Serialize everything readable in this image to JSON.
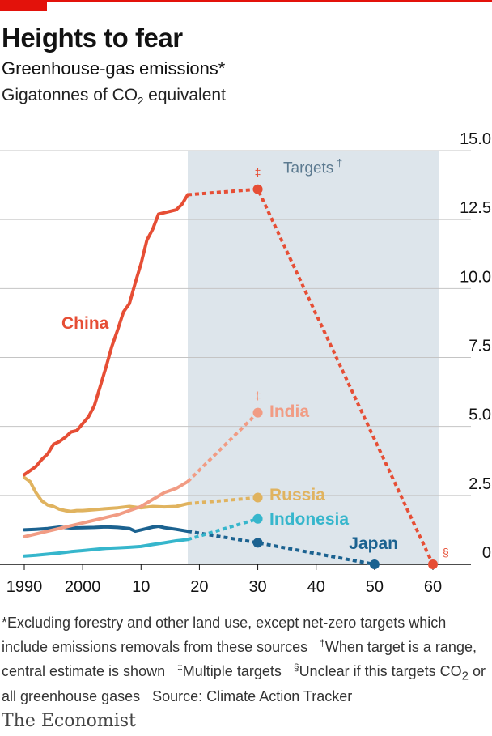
{
  "title": "Heights to fear",
  "subtitle": "Greenhouse-gas emissions*",
  "unit": {
    "pre": "Gigatonnes of CO",
    "sub": "2",
    "post": " equivalent"
  },
  "brand": "The Economist",
  "footnote": {
    "p1": "*Excluding forestry and other land use, except net-zero targets which include emissions removals from these sources",
    "s1": "†",
    "p2": "When target is a range, central estimate is shown",
    "s2": "‡",
    "p3": "Multiple targets",
    "s3": "§",
    "p4": "Unclear if this targets CO",
    "sub": "2",
    "p5": " or all greenhouse gases",
    "source": "Source: Climate Action Tracker"
  },
  "colors": {
    "China": "#e64e35",
    "India": "#f19c84",
    "Russia": "#e0b35f",
    "Indonesia": "#36b6cc",
    "Japan": "#1b6290",
    "targets_band": "#dde5eb",
    "targets_label": "#5c7a90",
    "grid": "#c4c4c4",
    "axis": "#121212"
  },
  "chart_data": {
    "type": "line",
    "xlim": [
      1990,
      2060
    ],
    "ylim": [
      0,
      15
    ],
    "y_axis_position": "right",
    "grid": true,
    "y_ticks": [
      0,
      2.5,
      5,
      7.5,
      10,
      12.5,
      15
    ],
    "y_tick_labels": [
      "0",
      "2.5",
      "5.0",
      "7.5",
      "10.0",
      "12.5",
      "15.0"
    ],
    "x_ticks": [
      1990,
      2000,
      2010,
      2020,
      2030,
      2040,
      2050,
      2060
    ],
    "x_tick_labels": [
      "1990",
      "2000",
      "10",
      "20",
      "30",
      "40",
      "50",
      "60"
    ],
    "targets_band": {
      "from": 2018,
      "to": 2060,
      "label": "Targets",
      "label_mark": "†"
    },
    "series": [
      {
        "name": "China",
        "x": [
          1990,
          1991,
          1992,
          1993,
          1994,
          1995,
          1996,
          1997,
          1998,
          1999,
          2000,
          2001,
          2002,
          2003,
          2004,
          2005,
          2006,
          2007,
          2008,
          2009,
          2010,
          2011,
          2012,
          2013,
          2014,
          2015,
          2016,
          2017,
          2018
        ],
        "y": [
          3.25,
          3.4,
          3.55,
          3.8,
          4.0,
          4.35,
          4.45,
          4.6,
          4.8,
          4.85,
          5.1,
          5.35,
          5.75,
          6.45,
          7.15,
          7.9,
          8.5,
          9.15,
          9.45,
          10.2,
          10.9,
          11.75,
          12.15,
          12.7,
          12.75,
          12.8,
          12.85,
          13.05,
          13.4
        ],
        "target_x": [
          2018,
          2030,
          2060
        ],
        "target_y": [
          13.4,
          13.6,
          0
        ],
        "target_marks": [
          "‡",
          "§"
        ]
      },
      {
        "name": "India",
        "x": [
          1990,
          1992,
          1994,
          1996,
          1998,
          2000,
          2002,
          2004,
          2006,
          2008,
          2010,
          2012,
          2014,
          2016,
          2018
        ],
        "y": [
          1.0,
          1.1,
          1.2,
          1.3,
          1.4,
          1.5,
          1.6,
          1.7,
          1.8,
          1.95,
          2.1,
          2.35,
          2.6,
          2.75,
          3.0
        ],
        "target_x": [
          2018,
          2030
        ],
        "target_y": [
          3.0,
          5.5
        ],
        "target_marks": [
          "‡"
        ]
      },
      {
        "name": "Russia",
        "x": [
          1990,
          1991,
          1992,
          1993,
          1994,
          1995,
          1996,
          1997,
          1998,
          1999,
          2000,
          2002,
          2004,
          2006,
          2008,
          2010,
          2012,
          2014,
          2016,
          2018
        ],
        "y": [
          3.15,
          3.0,
          2.6,
          2.3,
          2.15,
          2.1,
          2.0,
          1.95,
          1.92,
          1.95,
          1.95,
          1.98,
          2.02,
          2.05,
          2.1,
          2.05,
          2.1,
          2.08,
          2.1,
          2.2
        ],
        "target_x": [
          2018,
          2030
        ],
        "target_y": [
          2.2,
          2.42
        ],
        "target_marks": []
      },
      {
        "name": "Indonesia",
        "x": [
          1990,
          1992,
          1994,
          1996,
          1998,
          2000,
          2002,
          2004,
          2006,
          2008,
          2010,
          2012,
          2014,
          2016,
          2018
        ],
        "y": [
          0.3,
          0.33,
          0.37,
          0.41,
          0.46,
          0.5,
          0.54,
          0.58,
          0.6,
          0.62,
          0.65,
          0.72,
          0.78,
          0.85,
          0.9
        ],
        "target_x": [
          2018,
          2030
        ],
        "target_y": [
          0.9,
          1.65
        ],
        "target_marks": []
      },
      {
        "name": "Japan",
        "x": [
          1990,
          1992,
          1994,
          1996,
          1998,
          2000,
          2002,
          2004,
          2006,
          2008,
          2009,
          2010,
          2011,
          2012,
          2013,
          2014,
          2016,
          2018
        ],
        "y": [
          1.25,
          1.27,
          1.3,
          1.35,
          1.32,
          1.33,
          1.34,
          1.36,
          1.34,
          1.3,
          1.2,
          1.25,
          1.3,
          1.35,
          1.38,
          1.33,
          1.27,
          1.2
        ],
        "target_x": [
          2018,
          2030,
          2050
        ],
        "target_y": [
          1.2,
          0.78,
          0
        ],
        "target_marks": []
      }
    ]
  }
}
